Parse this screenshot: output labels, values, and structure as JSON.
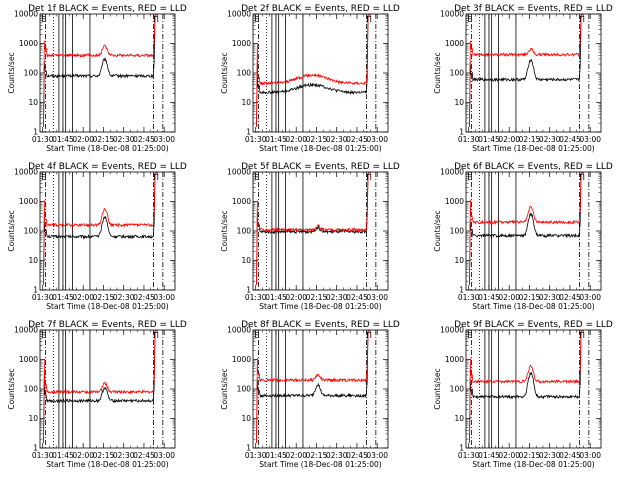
{
  "chart_data": [
    {
      "type": "line",
      "title": "Det 1f BLACK = Events, RED = LLD",
      "xlabel": "Start Time (18-Dec-08 01:25:00)",
      "ylabel": "Counts/sec",
      "yscale": "log",
      "ylim": [
        1,
        10000
      ],
      "xlim_min": [
        0,
        100
      ],
      "x_tick_labels": [
        "01:30",
        "01:45",
        "02:00",
        "02:15",
        "02:30",
        "02:45",
        "03:00"
      ],
      "y_tick_labels": [
        "1",
        "10",
        "100",
        "1000",
        "10000"
      ],
      "grid": false,
      "series": [
        {
          "color": "#000000",
          "base": 80,
          "peak": 300,
          "peak_t": 48,
          "bump": 0
        },
        {
          "color": "#ff0000",
          "base": 400,
          "peak": 850,
          "peak_t": 48,
          "bump": 0
        }
      ],
      "vlines_solid": [
        14,
        17,
        19,
        24,
        37
      ],
      "vlines_dotted": [
        10
      ],
      "vlines_dashdot": [
        4,
        84,
        91
      ],
      "markers": [
        {
          "t": 3,
          "label": "Б"
        },
        {
          "t": 86,
          "label": "П"
        }
      ]
    },
    {
      "type": "line",
      "title": "Det 2f BLACK = Events, RED = LLD",
      "xlabel": "Start Time (18-Dec-08 01:25:00)",
      "ylabel": "Counts/sec",
      "yscale": "log",
      "ylim": [
        1,
        10000
      ],
      "xlim_min": [
        0,
        100
      ],
      "x_tick_labels": [
        "01:30",
        "01:45",
        "02:00",
        "02:15",
        "02:30",
        "02:45",
        "03:00"
      ],
      "y_tick_labels": [
        "1",
        "10",
        "100",
        "1000",
        "10000"
      ],
      "grid": false,
      "series": [
        {
          "color": "#000000",
          "base": 22,
          "peak": 22,
          "peak_t": 48,
          "bump": 18
        },
        {
          "color": "#ff0000",
          "base": 45,
          "peak": 45,
          "peak_t": 48,
          "bump": 40
        }
      ],
      "vlines_solid": [
        14,
        17,
        19,
        24,
        37
      ],
      "vlines_dotted": [
        10
      ],
      "vlines_dashdot": [
        4,
        84,
        91
      ],
      "markers": [
        {
          "t": 3,
          "label": "Б"
        },
        {
          "t": 86,
          "label": "П"
        }
      ]
    },
    {
      "type": "line",
      "title": "Det 3f BLACK = Events, RED = LLD",
      "xlabel": "Start Time (18-Dec-08 01:25:00)",
      "ylabel": "Counts/sec",
      "yscale": "log",
      "ylim": [
        1,
        10000
      ],
      "xlim_min": [
        0,
        100
      ],
      "x_tick_labels": [
        "01:30",
        "01:45",
        "02:00",
        "02:15",
        "02:30",
        "02:45",
        "03:00"
      ],
      "y_tick_labels": [
        "1",
        "10",
        "100",
        "1000",
        "10000"
      ],
      "grid": false,
      "series": [
        {
          "color": "#000000",
          "base": 60,
          "peak": 280,
          "peak_t": 48,
          "bump": 0
        },
        {
          "color": "#ff0000",
          "base": 420,
          "peak": 650,
          "peak_t": 48,
          "bump": 0
        }
      ],
      "vlines_solid": [
        14,
        17,
        19,
        24,
        37
      ],
      "vlines_dotted": [
        10
      ],
      "vlines_dashdot": [
        4,
        84,
        91
      ],
      "markers": [
        {
          "t": 3,
          "label": "Б"
        },
        {
          "t": 86,
          "label": "П"
        }
      ]
    },
    {
      "type": "line",
      "title": "Det 4f BLACK = Events, RED = LLD",
      "xlabel": "Start Time (18-Dec-08 01:25:00)",
      "ylabel": "Counts/sec",
      "yscale": "log",
      "ylim": [
        1,
        10000
      ],
      "xlim_min": [
        0,
        100
      ],
      "x_tick_labels": [
        "01:30",
        "01:45",
        "02:00",
        "02:15",
        "02:30",
        "02:45",
        "03:00"
      ],
      "y_tick_labels": [
        "1",
        "10",
        "100",
        "1000",
        "10000"
      ],
      "grid": false,
      "series": [
        {
          "color": "#000000",
          "base": 65,
          "peak": 300,
          "peak_t": 48,
          "bump": 0
        },
        {
          "color": "#ff0000",
          "base": 160,
          "peak": 550,
          "peak_t": 48,
          "bump": 0
        }
      ],
      "vlines_solid": [
        14,
        17,
        19,
        24,
        37
      ],
      "vlines_dotted": [
        10
      ],
      "vlines_dashdot": [
        4,
        84,
        91
      ],
      "markers": [
        {
          "t": 3,
          "label": "Б"
        },
        {
          "t": 86,
          "label": "П"
        }
      ]
    },
    {
      "type": "line",
      "title": "Det 5f BLACK = Events, RED = LLD",
      "xlabel": "Start Time (18-Dec-08 01:25:00)",
      "ylabel": "Counts/sec",
      "yscale": "log",
      "ylim": [
        1,
        10000
      ],
      "xlim_min": [
        0,
        100
      ],
      "x_tick_labels": [
        "01:30",
        "01:45",
        "02:00",
        "02:15",
        "02:30",
        "02:45",
        "03:00"
      ],
      "y_tick_labels": [
        "1",
        "10",
        "100",
        "1000",
        "10000"
      ],
      "grid": false,
      "series": [
        {
          "color": "#000000",
          "base": 95,
          "peak": 130,
          "peak_t": 48,
          "bump": 0
        },
        {
          "color": "#ff0000",
          "base": 110,
          "peak": 150,
          "peak_t": 48,
          "bump": 0
        }
      ],
      "vlines_solid": [
        14,
        17,
        19,
        24,
        37
      ],
      "vlines_dotted": [
        10
      ],
      "vlines_dashdot": [
        4,
        84,
        91
      ],
      "markers": [
        {
          "t": 3,
          "label": "Б"
        },
        {
          "t": 86,
          "label": "П"
        }
      ]
    },
    {
      "type": "line",
      "title": "Det 6f BLACK = Events, RED = LLD",
      "xlabel": "Start Time (18-Dec-08 01:25:00)",
      "ylabel": "Counts/sec",
      "yscale": "log",
      "ylim": [
        1,
        10000
      ],
      "xlim_min": [
        0,
        100
      ],
      "x_tick_labels": [
        "01:30",
        "01:45",
        "02:00",
        "02:15",
        "02:30",
        "02:45",
        "03:00"
      ],
      "y_tick_labels": [
        "1",
        "10",
        "100",
        "1000",
        "10000"
      ],
      "grid": false,
      "series": [
        {
          "color": "#000000",
          "base": 70,
          "peak": 380,
          "peak_t": 48,
          "bump": 0
        },
        {
          "color": "#ff0000",
          "base": 200,
          "peak": 650,
          "peak_t": 48,
          "bump": 0
        }
      ],
      "vlines_solid": [
        14,
        17,
        19,
        24,
        37
      ],
      "vlines_dotted": [
        10
      ],
      "vlines_dashdot": [
        4,
        84,
        91
      ],
      "markers": [
        {
          "t": 3,
          "label": "Б"
        },
        {
          "t": 86,
          "label": "П"
        }
      ]
    },
    {
      "type": "line",
      "title": "Det 7f BLACK = Events, RED = LLD",
      "xlabel": "Start Time (18-Dec-08 01:25:00)",
      "ylabel": "Counts/sec",
      "yscale": "log",
      "ylim": [
        1,
        10000
      ],
      "xlim_min": [
        0,
        100
      ],
      "x_tick_labels": [
        "01:30",
        "01:45",
        "02:00",
        "02:15",
        "02:30",
        "02:45",
        "03:00"
      ],
      "y_tick_labels": [
        "1",
        "10",
        "100",
        "1000",
        "10000"
      ],
      "grid": false,
      "series": [
        {
          "color": "#000000",
          "base": 40,
          "peak": 110,
          "peak_t": 48,
          "bump": 0
        },
        {
          "color": "#ff0000",
          "base": 80,
          "peak": 160,
          "peak_t": 48,
          "bump": 0
        }
      ],
      "vlines_solid": [
        14,
        17,
        19,
        24,
        37
      ],
      "vlines_dotted": [
        10
      ],
      "vlines_dashdot": [
        4,
        84,
        91
      ],
      "markers": [
        {
          "t": 3,
          "label": "Б"
        },
        {
          "t": 86,
          "label": "П"
        }
      ]
    },
    {
      "type": "line",
      "title": "Det 8f BLACK = Events, RED = LLD",
      "xlabel": "Start Time (18-Dec-08 01:25:00)",
      "ylabel": "Counts/sec",
      "yscale": "log",
      "ylim": [
        1,
        10000
      ],
      "xlim_min": [
        0,
        100
      ],
      "x_tick_labels": [
        "01:30",
        "01:45",
        "02:00",
        "02:15",
        "02:30",
        "02:45",
        "03:00"
      ],
      "y_tick_labels": [
        "1",
        "10",
        "100",
        "1000",
        "10000"
      ],
      "grid": false,
      "series": [
        {
          "color": "#000000",
          "base": 60,
          "peak": 140,
          "peak_t": 48,
          "bump": 0
        },
        {
          "color": "#ff0000",
          "base": 200,
          "peak": 300,
          "peak_t": 48,
          "bump": 0
        }
      ],
      "vlines_solid": [
        14,
        17,
        19,
        24,
        37
      ],
      "vlines_dotted": [
        10
      ],
      "vlines_dashdot": [
        4,
        84,
        91
      ],
      "markers": [
        {
          "t": 3,
          "label": "Б"
        },
        {
          "t": 86,
          "label": "П"
        }
      ]
    },
    {
      "type": "line",
      "title": "Det 9f BLACK = Events, RED = LLD",
      "xlabel": "Start Time (18-Dec-08 01:25:00)",
      "ylabel": "Counts/sec",
      "yscale": "log",
      "ylim": [
        1,
        10000
      ],
      "xlim_min": [
        0,
        100
      ],
      "x_tick_labels": [
        "01:30",
        "01:45",
        "02:00",
        "02:15",
        "02:30",
        "02:45",
        "03:00"
      ],
      "y_tick_labels": [
        "1",
        "10",
        "100",
        "1000",
        "10000"
      ],
      "grid": false,
      "series": [
        {
          "color": "#000000",
          "base": 55,
          "peak": 350,
          "peak_t": 48,
          "bump": 0
        },
        {
          "color": "#ff0000",
          "base": 180,
          "peak": 600,
          "peak_t": 48,
          "bump": 0
        }
      ],
      "vlines_solid": [
        14,
        17,
        19,
        24,
        37
      ],
      "vlines_dotted": [
        10
      ],
      "vlines_dashdot": [
        4,
        84,
        91
      ],
      "markers": [
        {
          "t": 3,
          "label": "Б"
        },
        {
          "t": 86,
          "label": "П"
        }
      ]
    }
  ]
}
